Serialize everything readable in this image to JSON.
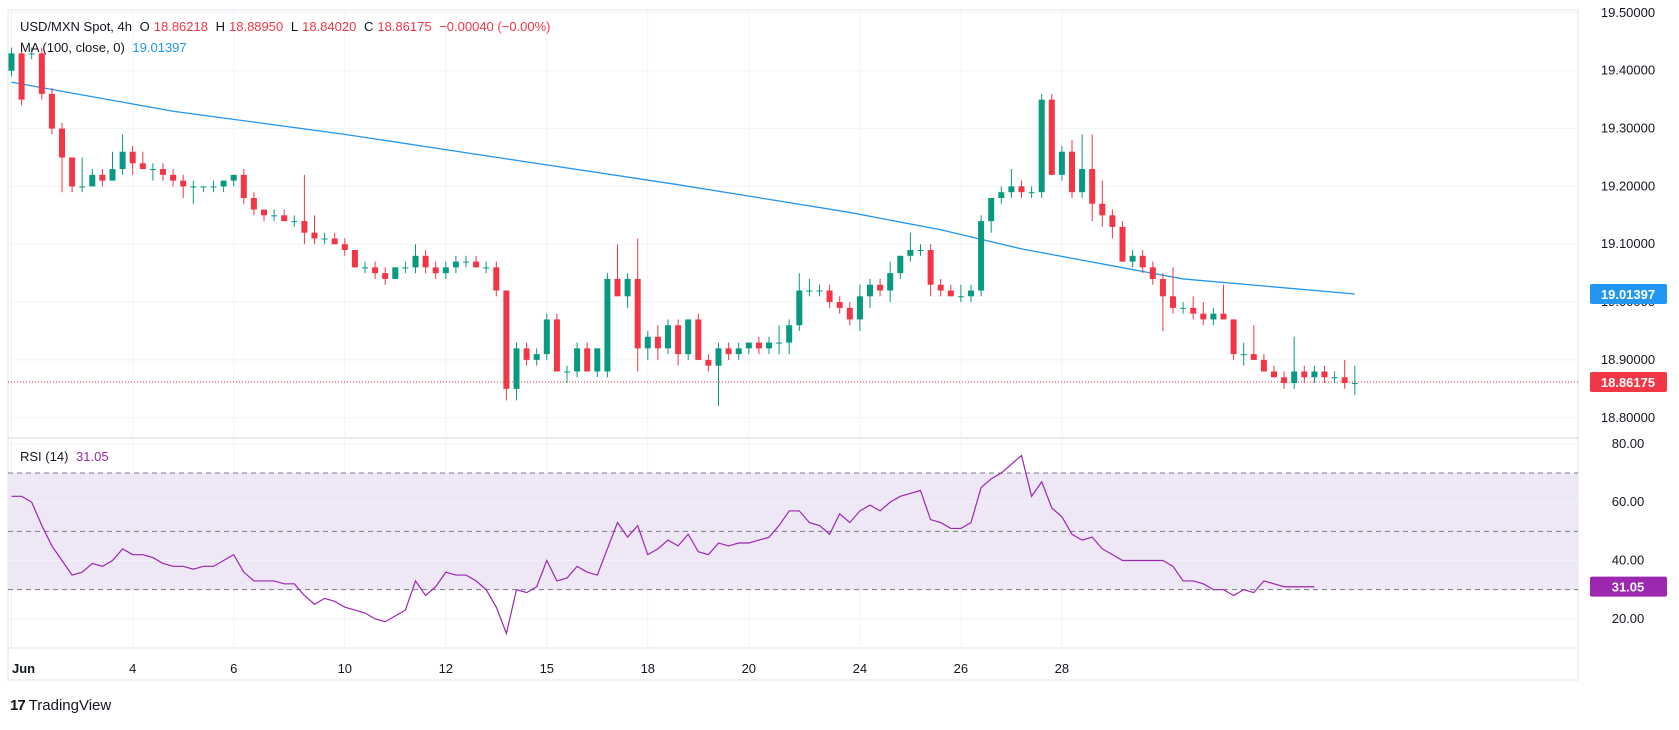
{
  "header": {
    "symbol": "USD/MXN Spot, 4h",
    "open_label": "O",
    "open": "18.86218",
    "high_label": "H",
    "high": "18.88950",
    "low_label": "L",
    "low": "18.84020",
    "close_label": "C",
    "close": "18.86175",
    "change": "−0.00040 (−0.00%)"
  },
  "ma_legend": {
    "label": "MA (100, close, 0)",
    "value": "19.01397"
  },
  "rsi_legend": {
    "label": "RSI (14)",
    "value": "31.05"
  },
  "branding": {
    "logo": "17",
    "name": "TradingView"
  },
  "colors": {
    "up": "#089981",
    "down": "#f23645",
    "ma": "#2196f3",
    "rsi": "#9c27b0",
    "rsi_band": "#ede7f6",
    "grid": "#f0f3fa",
    "axis_text": "#131722"
  },
  "chart_data": [
    {
      "type": "candlestick",
      "title": "USD/MXN Spot, 4h",
      "price_axis": {
        "ticks": [
          "19.50000",
          "19.40000",
          "19.30000",
          "19.20000",
          "19.10000",
          "19.00000",
          "18.90000",
          "18.80000"
        ],
        "tick_values": [
          19.5,
          19.4,
          19.3,
          19.2,
          19.1,
          19.0,
          18.9,
          18.8
        ],
        "ylim": [
          18.765,
          19.505
        ]
      },
      "time_axis": {
        "labels": [
          "Jun",
          "4",
          "6",
          "10",
          "12",
          "15",
          "18",
          "20",
          "24",
          "26",
          "28"
        ],
        "label_bar_index": [
          0,
          12,
          22,
          33,
          43,
          53,
          63,
          73,
          84,
          94,
          104
        ]
      },
      "current_price": {
        "label": "18.86175",
        "value": 18.86175
      },
      "ma_current": {
        "label": "19.01397",
        "value": 19.01397
      },
      "candles": [
        [
          19.4,
          19.44,
          19.39,
          19.43
        ],
        [
          19.43,
          19.45,
          19.34,
          19.35
        ],
        [
          19.43,
          19.44,
          19.42,
          19.43
        ],
        [
          19.43,
          19.44,
          19.35,
          19.36
        ],
        [
          19.36,
          19.37,
          19.29,
          19.3
        ],
        [
          19.3,
          19.31,
          19.19,
          19.25
        ],
        [
          19.25,
          19.25,
          19.19,
          19.2
        ],
        [
          19.2,
          19.25,
          19.19,
          19.2
        ],
        [
          19.2,
          19.23,
          19.2,
          19.22
        ],
        [
          19.22,
          19.23,
          19.2,
          19.21
        ],
        [
          19.21,
          19.26,
          19.21,
          19.23
        ],
        [
          19.23,
          19.29,
          19.22,
          19.26
        ],
        [
          19.26,
          19.27,
          19.22,
          19.24
        ],
        [
          19.24,
          19.26,
          19.23,
          19.23
        ],
        [
          19.23,
          19.24,
          19.21,
          19.23
        ],
        [
          19.23,
          19.24,
          19.21,
          19.22
        ],
        [
          19.22,
          19.23,
          19.2,
          19.21
        ],
        [
          19.21,
          19.22,
          19.18,
          19.2
        ],
        [
          19.2,
          19.21,
          19.17,
          19.2
        ],
        [
          19.2,
          19.2,
          19.19,
          19.2
        ],
        [
          19.2,
          19.21,
          19.19,
          19.2
        ],
        [
          19.2,
          19.21,
          19.19,
          19.21
        ],
        [
          19.21,
          19.22,
          19.2,
          19.22
        ],
        [
          19.22,
          19.23,
          19.17,
          19.18
        ],
        [
          19.18,
          19.19,
          19.15,
          19.16
        ],
        [
          19.16,
          19.16,
          19.14,
          19.15
        ],
        [
          19.15,
          19.16,
          19.14,
          19.15
        ],
        [
          19.15,
          19.16,
          19.14,
          19.14
        ],
        [
          19.14,
          19.15,
          19.13,
          19.14
        ],
        [
          19.14,
          19.22,
          19.1,
          19.12
        ],
        [
          19.12,
          19.15,
          19.1,
          19.11
        ],
        [
          19.11,
          19.12,
          19.1,
          19.11
        ],
        [
          19.11,
          19.12,
          19.1,
          19.1
        ],
        [
          19.1,
          19.11,
          19.08,
          19.09
        ],
        [
          19.09,
          19.09,
          19.06,
          19.06
        ],
        [
          19.06,
          19.07,
          19.05,
          19.06
        ],
        [
          19.06,
          19.07,
          19.04,
          19.05
        ],
        [
          19.05,
          19.06,
          19.03,
          19.04
        ],
        [
          19.04,
          19.06,
          19.04,
          19.06
        ],
        [
          19.06,
          19.07,
          19.05,
          19.06
        ],
        [
          19.06,
          19.1,
          19.05,
          19.08
        ],
        [
          19.08,
          19.09,
          19.05,
          19.06
        ],
        [
          19.06,
          19.07,
          19.04,
          19.05
        ],
        [
          19.05,
          19.07,
          19.04,
          19.06
        ],
        [
          19.06,
          19.08,
          19.05,
          19.07
        ],
        [
          19.07,
          19.08,
          19.06,
          19.07
        ],
        [
          19.07,
          19.08,
          19.06,
          19.06
        ],
        [
          19.06,
          19.07,
          19.05,
          19.06
        ],
        [
          19.06,
          19.07,
          19.01,
          19.02
        ],
        [
          19.02,
          19.02,
          18.83,
          18.85
        ],
        [
          18.85,
          18.93,
          18.83,
          18.92
        ],
        [
          18.92,
          18.93,
          18.89,
          18.9
        ],
        [
          18.9,
          18.92,
          18.89,
          18.91
        ],
        [
          18.91,
          18.98,
          18.9,
          18.97
        ],
        [
          18.97,
          18.98,
          18.88,
          18.88
        ],
        [
          18.88,
          18.89,
          18.86,
          18.88
        ],
        [
          18.88,
          18.93,
          18.87,
          18.92
        ],
        [
          18.92,
          18.93,
          18.88,
          18.88
        ],
        [
          18.88,
          18.92,
          18.87,
          18.92
        ],
        [
          18.88,
          19.05,
          18.87,
          19.04
        ],
        [
          19.04,
          19.1,
          19.01,
          19.01
        ],
        [
          19.01,
          19.05,
          18.99,
          19.04
        ],
        [
          19.04,
          19.11,
          18.88,
          18.92
        ],
        [
          18.92,
          18.95,
          18.9,
          18.94
        ],
        [
          18.94,
          18.96,
          18.9,
          18.92
        ],
        [
          18.92,
          18.97,
          18.91,
          18.96
        ],
        [
          18.96,
          18.97,
          18.89,
          18.91
        ],
        [
          18.91,
          18.97,
          18.9,
          18.97
        ],
        [
          18.97,
          18.98,
          18.9,
          18.9
        ],
        [
          18.9,
          18.91,
          18.88,
          18.89
        ],
        [
          18.89,
          18.93,
          18.82,
          18.92
        ],
        [
          18.92,
          18.93,
          18.9,
          18.91
        ],
        [
          18.91,
          18.93,
          18.9,
          18.92
        ],
        [
          18.92,
          18.93,
          18.91,
          18.93
        ],
        [
          18.93,
          18.94,
          18.91,
          18.92
        ],
        [
          18.92,
          18.94,
          18.91,
          18.93
        ],
        [
          18.93,
          18.96,
          18.91,
          18.93
        ],
        [
          18.93,
          18.97,
          18.91,
          18.96
        ],
        [
          18.96,
          19.05,
          18.95,
          19.02
        ],
        [
          19.02,
          19.04,
          19.01,
          19.02
        ],
        [
          19.02,
          19.03,
          19.01,
          19.02
        ],
        [
          19.02,
          19.03,
          18.99,
          19.0
        ],
        [
          19.0,
          19.01,
          18.98,
          18.99
        ],
        [
          18.99,
          19.0,
          18.96,
          18.97
        ],
        [
          18.97,
          19.03,
          18.95,
          19.01
        ],
        [
          19.01,
          19.04,
          18.99,
          19.03
        ],
        [
          19.03,
          19.04,
          19.01,
          19.02
        ],
        [
          19.02,
          19.07,
          19.0,
          19.05
        ],
        [
          19.05,
          19.08,
          19.04,
          19.08
        ],
        [
          19.08,
          19.12,
          19.07,
          19.09
        ],
        [
          19.09,
          19.1,
          19.08,
          19.09
        ],
        [
          19.09,
          19.1,
          19.01,
          19.03
        ],
        [
          19.03,
          19.04,
          19.01,
          19.02
        ],
        [
          19.02,
          19.03,
          19.01,
          19.01
        ],
        [
          19.01,
          19.03,
          19.0,
          19.01
        ],
        [
          19.01,
          19.03,
          19.0,
          19.02
        ],
        [
          19.02,
          19.15,
          19.01,
          19.14
        ],
        [
          19.14,
          19.18,
          19.12,
          19.18
        ],
        [
          19.18,
          19.2,
          19.17,
          19.19
        ],
        [
          19.19,
          19.23,
          19.18,
          19.2
        ],
        [
          19.2,
          19.21,
          19.18,
          19.19
        ],
        [
          19.19,
          19.2,
          19.18,
          19.19
        ],
        [
          19.19,
          19.36,
          19.18,
          19.35
        ],
        [
          19.35,
          19.36,
          19.22,
          19.22
        ],
        [
          19.22,
          19.27,
          19.21,
          19.26
        ],
        [
          19.26,
          19.28,
          19.18,
          19.19
        ],
        [
          19.19,
          19.29,
          19.18,
          19.23
        ],
        [
          19.23,
          19.29,
          19.14,
          19.17
        ],
        [
          19.17,
          19.21,
          19.13,
          19.15
        ],
        [
          19.15,
          19.16,
          19.11,
          19.13
        ],
        [
          19.13,
          19.14,
          19.07,
          19.07
        ],
        [
          19.07,
          19.09,
          19.06,
          19.08
        ],
        [
          19.08,
          19.09,
          19.05,
          19.06
        ],
        [
          19.06,
          19.07,
          19.03,
          19.04
        ],
        [
          19.04,
          19.05,
          18.95,
          19.01
        ],
        [
          19.01,
          19.06,
          18.98,
          18.99
        ],
        [
          18.99,
          19.0,
          18.98,
          18.99
        ],
        [
          18.99,
          19.01,
          18.97,
          18.98
        ],
        [
          18.98,
          19.0,
          18.96,
          18.97
        ],
        [
          18.97,
          18.99,
          18.96,
          18.98
        ],
        [
          18.98,
          19.03,
          18.97,
          18.97
        ],
        [
          18.97,
          18.97,
          18.9,
          18.91
        ],
        [
          18.91,
          18.93,
          18.89,
          18.91
        ],
        [
          18.91,
          18.96,
          18.9,
          18.9
        ],
        [
          18.9,
          18.91,
          18.88,
          18.88
        ],
        [
          18.88,
          18.89,
          18.87,
          18.87
        ],
        [
          18.87,
          18.88,
          18.85,
          18.86
        ],
        [
          18.86,
          18.94,
          18.85,
          18.88
        ],
        [
          18.88,
          18.89,
          18.86,
          18.87
        ],
        [
          18.87,
          18.89,
          18.86,
          18.88
        ],
        [
          18.88,
          18.89,
          18.86,
          18.87
        ],
        [
          18.87,
          18.88,
          18.86,
          18.87
        ],
        [
          18.87,
          18.9,
          18.85,
          18.86
        ],
        [
          18.86,
          18.89,
          18.84,
          18.86
        ]
      ],
      "ma_100": [
        19.38,
        19.33,
        19.29,
        19.245,
        19.203,
        19.155,
        19.125,
        19.092,
        19.04,
        19.01397
      ],
      "ma_100_bar_index": [
        0,
        16,
        33,
        50,
        66,
        83,
        92,
        100,
        116,
        133
      ]
    },
    {
      "type": "line",
      "title": "RSI (14)",
      "value_label": "31.05",
      "y_axis": {
        "ticks": [
          "80.00",
          "60.00",
          "40.00",
          "20.00"
        ],
        "tick_values": [
          80,
          60,
          40,
          20
        ],
        "ylim": [
          10,
          82
        ]
      },
      "levels": [
        70,
        50,
        30
      ],
      "band": [
        30,
        70
      ],
      "series": [
        {
          "values": [
            62,
            62,
            60,
            52,
            45,
            40,
            35,
            36,
            39,
            38,
            40,
            44,
            42,
            42,
            41,
            39,
            38,
            38,
            37,
            38,
            38,
            40,
            42,
            36,
            33,
            33,
            33,
            32,
            32,
            28,
            25,
            27,
            26,
            24,
            23,
            22,
            20,
            19,
            21,
            23,
            33,
            28,
            31,
            36,
            35,
            35,
            33,
            30,
            24,
            15,
            30,
            29,
            31,
            40,
            33,
            34,
            38,
            36,
            35,
            44,
            53,
            48,
            52,
            42,
            44,
            47,
            45,
            49,
            43,
            42,
            46,
            45,
            46,
            46,
            47,
            48,
            52,
            57,
            57,
            53,
            52,
            49,
            56,
            53,
            57,
            59,
            57,
            60,
            62,
            63,
            64,
            54,
            53,
            51,
            51,
            53,
            65,
            68,
            70,
            73,
            76,
            62,
            67,
            58,
            55,
            49,
            47,
            48,
            44,
            42,
            40,
            40,
            40,
            40,
            40,
            38,
            33,
            33,
            32,
            30,
            30,
            28,
            30,
            29,
            33,
            32,
            31,
            31,
            31,
            31
          ]
        }
      ]
    }
  ]
}
